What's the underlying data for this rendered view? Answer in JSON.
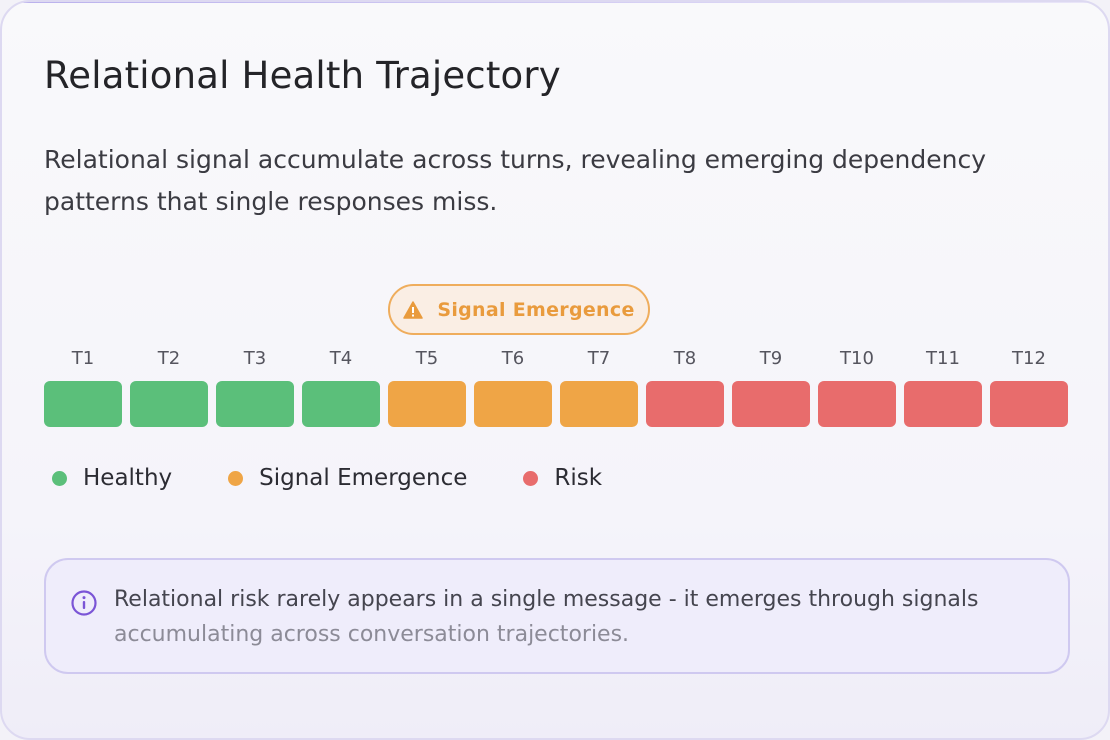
{
  "card": {
    "title": "Relational Health Trajectory",
    "subtitle": "Relational signal accumulate across turns, revealing emerging dependency patterns that single responses miss."
  },
  "badge": {
    "icon": "warning-icon",
    "label": "Signal Emergence",
    "color": "#e99b3d"
  },
  "colors": {
    "healthy": "#5bbf7a",
    "emergence": "#efa546",
    "risk": "#e86c6c"
  },
  "turns": [
    {
      "label": "T1",
      "status": "healthy"
    },
    {
      "label": "T2",
      "status": "healthy"
    },
    {
      "label": "T3",
      "status": "healthy"
    },
    {
      "label": "T4",
      "status": "healthy"
    },
    {
      "label": "T5",
      "status": "emergence"
    },
    {
      "label": "T6",
      "status": "emergence"
    },
    {
      "label": "T7",
      "status": "emergence"
    },
    {
      "label": "T8",
      "status": "risk"
    },
    {
      "label": "T9",
      "status": "risk"
    },
    {
      "label": "T10",
      "status": "risk"
    },
    {
      "label": "T11",
      "status": "risk"
    },
    {
      "label": "T12",
      "status": "risk"
    }
  ],
  "legend": [
    {
      "label": "Healthy",
      "status": "healthy"
    },
    {
      "label": "Signal Emergence",
      "status": "emergence"
    },
    {
      "label": "Risk",
      "status": "risk"
    }
  ],
  "note": {
    "icon": "info-icon",
    "text_primary": "Relational risk rarely appears in a single message - it emerges through signals",
    "text_secondary": "accumulating across conversation trajectories."
  }
}
